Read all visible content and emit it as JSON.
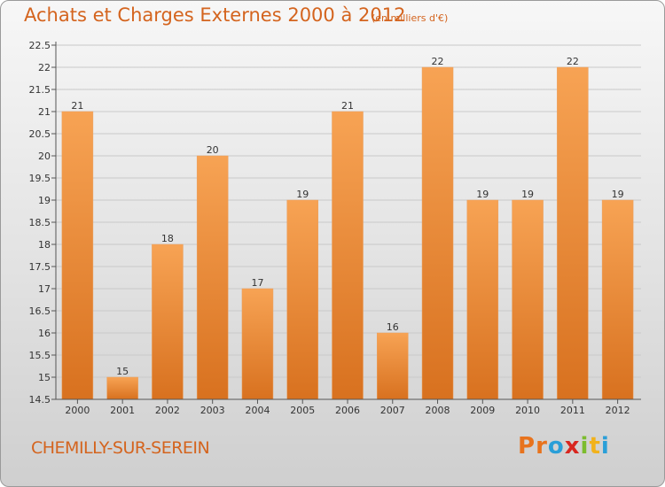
{
  "header": {
    "title": "Achats et Charges Externes 2000 à 2012",
    "unit": "(en milliers d'€)"
  },
  "footer": {
    "commune": "CHEMILLY-SUR-SEREIN",
    "logo": "Proxiti",
    "logo_colors": [
      "#e8731d",
      "#e8731d",
      "#2a9fd8",
      "#d8261f",
      "#7cbc2e",
      "#f2b21b",
      "#2a9fd8"
    ]
  },
  "colors": {
    "accent": "#d4641e",
    "bar_top": "#f7a354",
    "bar_bottom": "#d8711f"
  },
  "chart_data": {
    "type": "bar",
    "title": "Achats et Charges Externes 2000 à 2012",
    "subtitle": "(en milliers d'€)",
    "categories": [
      "2000",
      "2001",
      "2002",
      "2003",
      "2004",
      "2005",
      "2006",
      "2007",
      "2008",
      "2009",
      "2010",
      "2011",
      "2012"
    ],
    "values": [
      21,
      15,
      18,
      20,
      17,
      19,
      21,
      16,
      22,
      19,
      19,
      22,
      19
    ],
    "ylim": [
      14.5,
      22.5
    ],
    "yticks": [
      "14.5",
      "15",
      "15.5",
      "16",
      "16.5",
      "17",
      "17.5",
      "18",
      "18.5",
      "19",
      "19.5",
      "20",
      "20.5",
      "21",
      "21.5",
      "22",
      "22.5"
    ],
    "grid": true,
    "legend": "none"
  }
}
